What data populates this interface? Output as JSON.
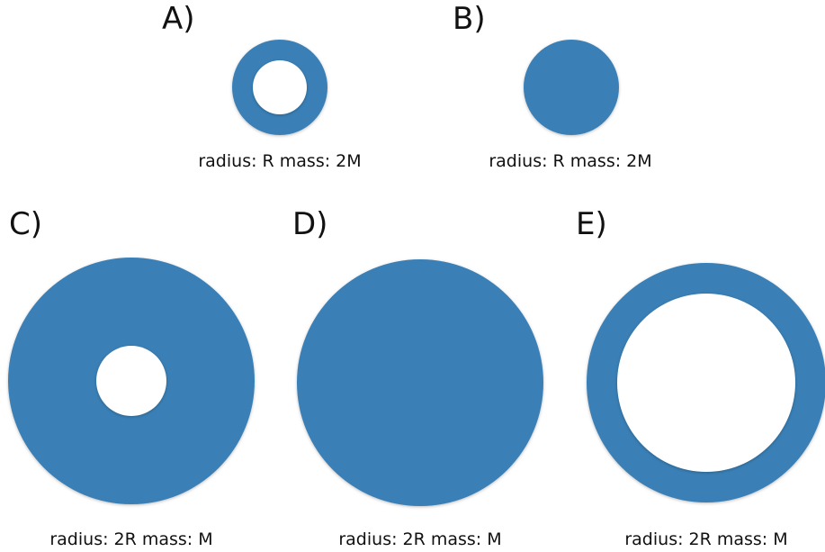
{
  "colors": {
    "disc": "#3a80b7",
    "hole": "#ffffff",
    "text": "#111111"
  },
  "panels": [
    {
      "label": "A)",
      "caption": "radius: R mass: 2M",
      "shape": "ring"
    },
    {
      "label": "B)",
      "caption": "radius: R mass: 2M",
      "shape": "solid-disk"
    },
    {
      "label": "C)",
      "caption": "radius: 2R mass: M",
      "shape": "ring"
    },
    {
      "label": "D)",
      "caption": "radius: 2R mass: M",
      "shape": "solid-disk"
    },
    {
      "label": "E)",
      "caption": "radius: 2R mass: M",
      "shape": "ring"
    }
  ]
}
